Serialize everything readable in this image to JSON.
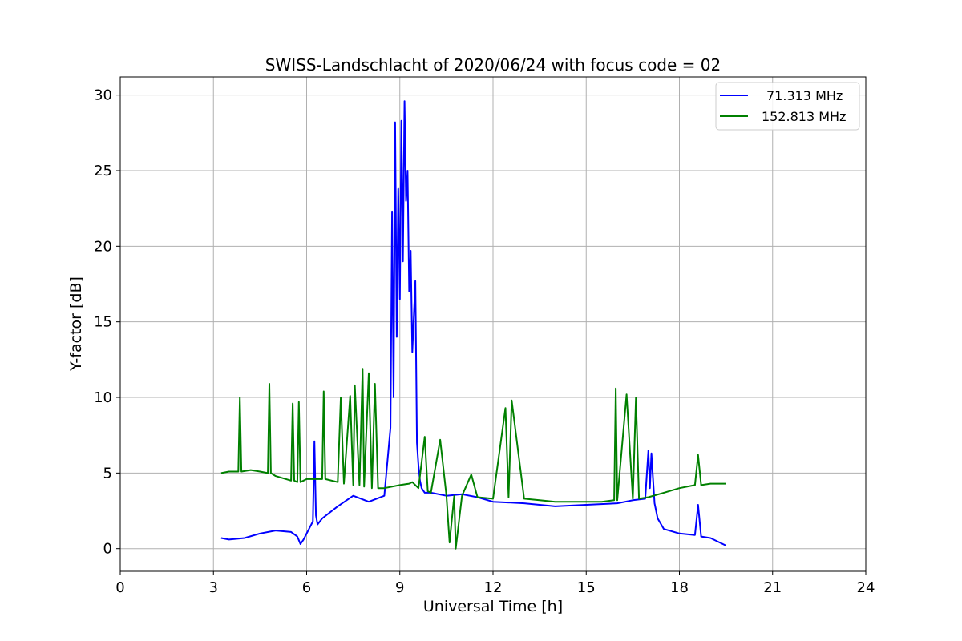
{
  "chart_data": {
    "type": "line",
    "title": "SWISS-Landschlacht of 2020/06/24 with focus code = 02",
    "xlabel": "Universal Time [h]",
    "ylabel": "Y-factor [dB]",
    "xlim": [
      0,
      24
    ],
    "ylim": [
      -1.5,
      31.2
    ],
    "xticks": [
      0,
      3,
      6,
      9,
      12,
      15,
      18,
      21,
      24
    ],
    "yticks": [
      0,
      5,
      10,
      15,
      20,
      25,
      30
    ],
    "grid": true,
    "legend_position": "top-right",
    "series": [
      {
        "name": "71.313 MHz",
        "color": "#0000ff",
        "x": [
          3.25,
          3.5,
          4.0,
          4.5,
          5.0,
          5.5,
          5.7,
          5.8,
          5.9,
          6.0,
          6.2,
          6.25,
          6.3,
          6.35,
          6.5,
          7.0,
          7.5,
          8.0,
          8.5,
          8.7,
          8.75,
          8.8,
          8.85,
          8.9,
          8.95,
          9.0,
          9.05,
          9.1,
          9.15,
          9.2,
          9.25,
          9.3,
          9.35,
          9.4,
          9.5,
          9.55,
          9.6,
          9.65,
          9.7,
          9.8,
          10.0,
          10.5,
          11.0,
          11.5,
          12.0,
          13.0,
          14.0,
          15.0,
          16.0,
          16.5,
          16.9,
          17.0,
          17.05,
          17.1,
          17.2,
          17.3,
          17.5,
          18.0,
          18.5,
          18.6,
          18.7,
          19.0,
          19.3,
          19.5
        ],
        "y": [
          0.7,
          0.6,
          0.7,
          1.0,
          1.2,
          1.1,
          0.8,
          0.3,
          0.6,
          1.0,
          1.8,
          7.1,
          2.2,
          1.6,
          2.0,
          2.8,
          3.5,
          3.1,
          3.5,
          8.0,
          22.3,
          10.0,
          28.2,
          14.0,
          23.8,
          16.5,
          28.3,
          19.0,
          29.6,
          23.0,
          25.0,
          17.0,
          19.7,
          13.0,
          17.7,
          7.0,
          5.5,
          4.5,
          4.0,
          3.7,
          3.7,
          3.5,
          3.6,
          3.4,
          3.1,
          3.0,
          2.8,
          2.9,
          3.0,
          3.2,
          3.3,
          6.5,
          4.0,
          6.3,
          3.0,
          2.0,
          1.3,
          1.0,
          0.9,
          2.9,
          0.8,
          0.7,
          0.4,
          0.2
        ]
      },
      {
        "name": "152.813 MHz",
        "color": "#008000",
        "x": [
          3.25,
          3.5,
          3.8,
          3.85,
          3.9,
          4.2,
          4.5,
          4.75,
          4.8,
          4.85,
          5.0,
          5.5,
          5.55,
          5.6,
          5.7,
          5.75,
          5.8,
          6.0,
          6.5,
          6.55,
          6.6,
          7.0,
          7.1,
          7.2,
          7.4,
          7.5,
          7.55,
          7.7,
          7.8,
          7.85,
          8.0,
          8.1,
          8.2,
          8.3,
          8.5,
          9.0,
          9.3,
          9.4,
          9.6,
          9.8,
          9.9,
          10.0,
          10.3,
          10.5,
          10.6,
          10.75,
          10.8,
          11.0,
          11.3,
          11.5,
          12.0,
          12.4,
          12.5,
          12.6,
          13.0,
          13.5,
          14.0,
          14.5,
          15.0,
          15.5,
          15.9,
          15.95,
          16.0,
          16.3,
          16.5,
          16.6,
          16.7,
          17.0,
          17.5,
          18.0,
          18.5,
          18.6,
          18.7,
          19.0,
          19.3,
          19.5
        ],
        "y": [
          5.0,
          5.1,
          5.1,
          10.0,
          5.1,
          5.2,
          5.1,
          5.0,
          10.9,
          5.0,
          4.8,
          4.5,
          9.6,
          4.5,
          4.4,
          9.7,
          4.4,
          4.6,
          4.6,
          10.4,
          4.6,
          4.4,
          10.0,
          4.3,
          10.1,
          4.2,
          10.8,
          4.2,
          11.9,
          4.1,
          11.6,
          4.0,
          10.9,
          4.0,
          4.0,
          4.2,
          4.3,
          4.4,
          4.0,
          7.4,
          3.8,
          3.7,
          7.2,
          3.5,
          0.4,
          3.5,
          0.0,
          3.5,
          4.9,
          3.4,
          3.3,
          9.3,
          3.4,
          9.8,
          3.3,
          3.2,
          3.1,
          3.1,
          3.1,
          3.1,
          3.2,
          10.6,
          3.2,
          10.2,
          3.3,
          10.0,
          3.3,
          3.4,
          3.7,
          4.0,
          4.2,
          6.2,
          4.2,
          4.3,
          4.3,
          4.3
        ]
      }
    ]
  }
}
